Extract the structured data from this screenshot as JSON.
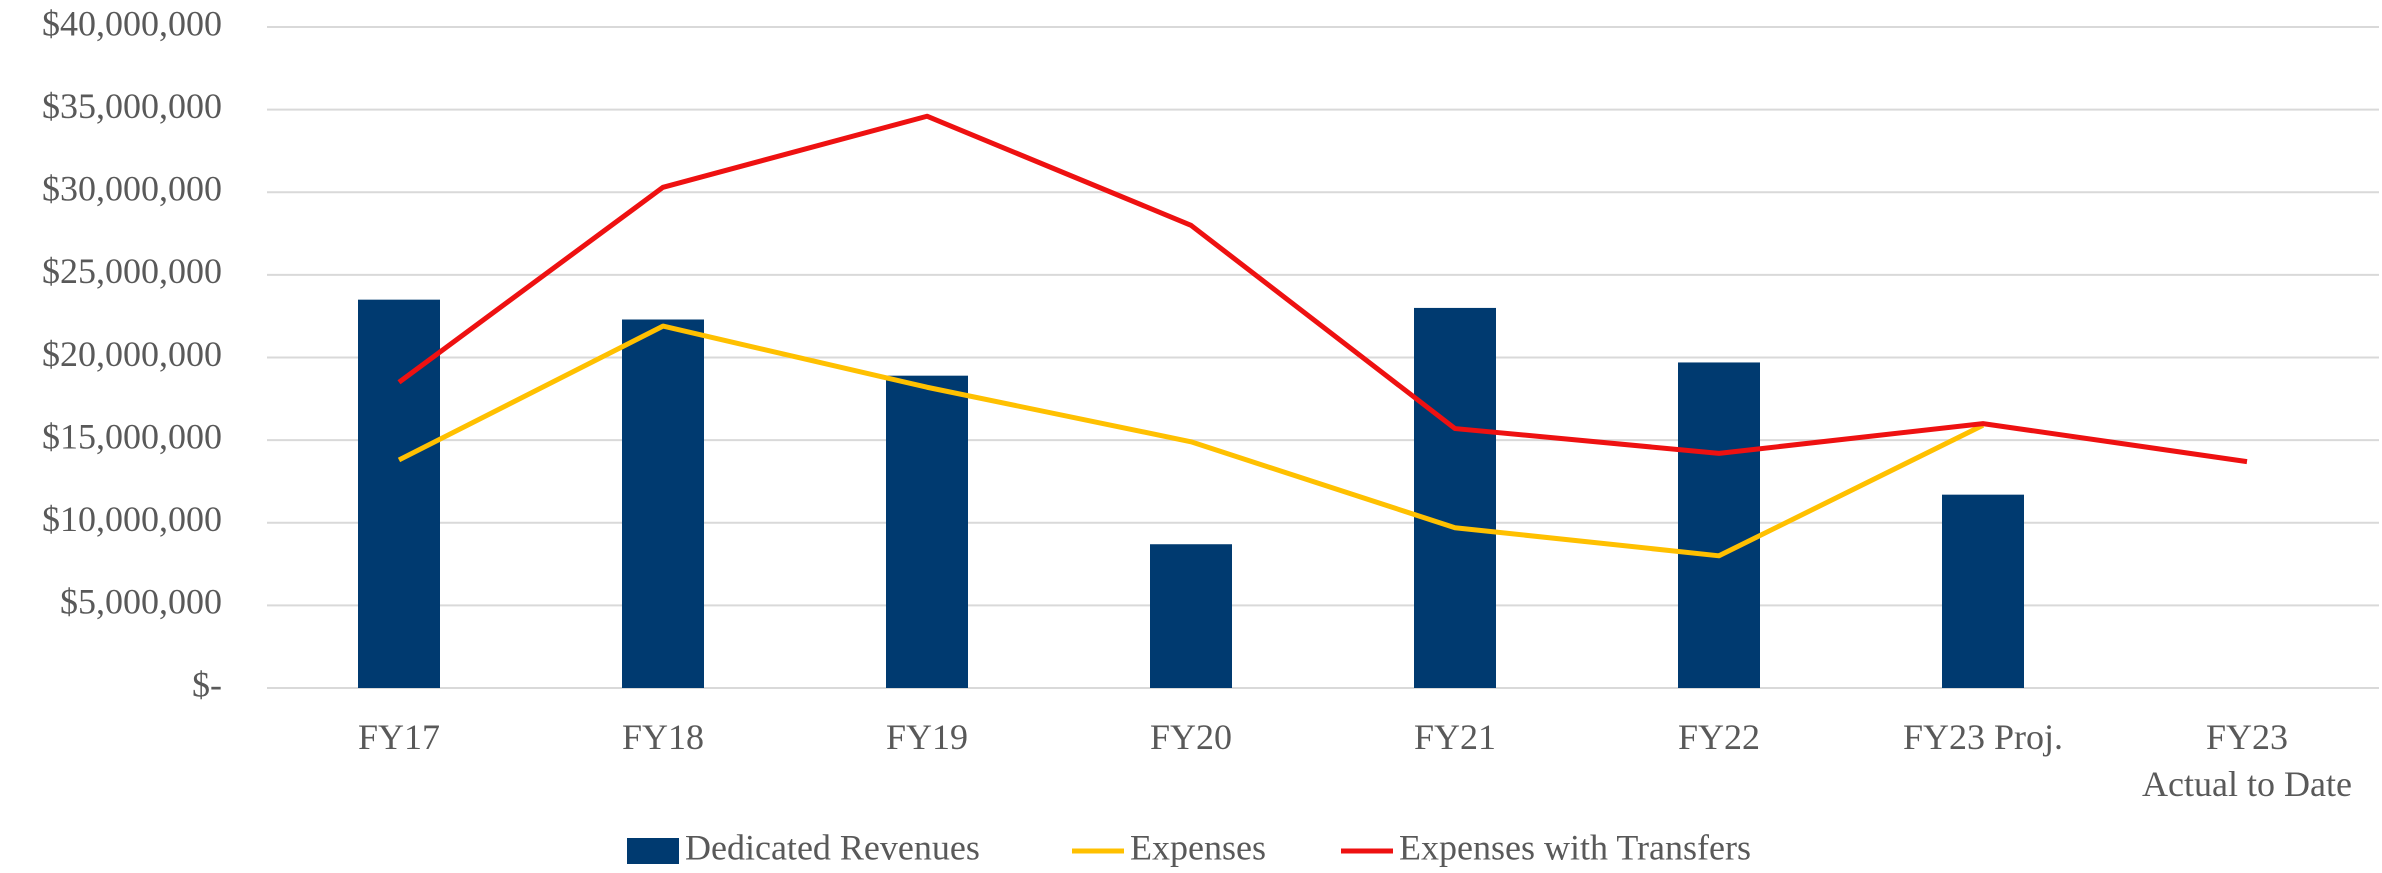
{
  "chart_data": {
    "type": "bar",
    "categories": [
      "FY17",
      "FY18",
      "FY19",
      "FY20",
      "FY21",
      "FY22",
      "FY23 Proj.",
      "FY23\nActual to Date"
    ],
    "series": [
      {
        "name": "Dedicated Revenues",
        "type": "bar",
        "color": "#003a70",
        "values": [
          23500000,
          22300000,
          18900000,
          8700000,
          23000000,
          19700000,
          11700000,
          null
        ]
      },
      {
        "name": "Expenses",
        "type": "line",
        "color": "#ffc000",
        "values": [
          13800000,
          21900000,
          18200000,
          14900000,
          9700000,
          8000000,
          15900000,
          null
        ]
      },
      {
        "name": "Expenses with Transfers",
        "type": "line",
        "color": "#ee1111",
        "values": [
          18500000,
          30300000,
          34600000,
          28000000,
          15700000,
          14200000,
          16000000,
          13700000
        ]
      }
    ],
    "ylim": [
      0,
      40000000
    ],
    "yticks": [
      {
        "value": 0,
        "label": "$-"
      },
      {
        "value": 5000000,
        "label": "$5,000,000"
      },
      {
        "value": 10000000,
        "label": "$10,000,000"
      },
      {
        "value": 15000000,
        "label": "$15,000,000"
      },
      {
        "value": 20000000,
        "label": "$20,000,000"
      },
      {
        "value": 25000000,
        "label": "$25,000,000"
      },
      {
        "value": 30000000,
        "label": "$30,000,000"
      },
      {
        "value": 35000000,
        "label": "$35,000,000"
      },
      {
        "value": 40000000,
        "label": "$40,000,000"
      }
    ],
    "grid": true,
    "legend": "bottom"
  }
}
